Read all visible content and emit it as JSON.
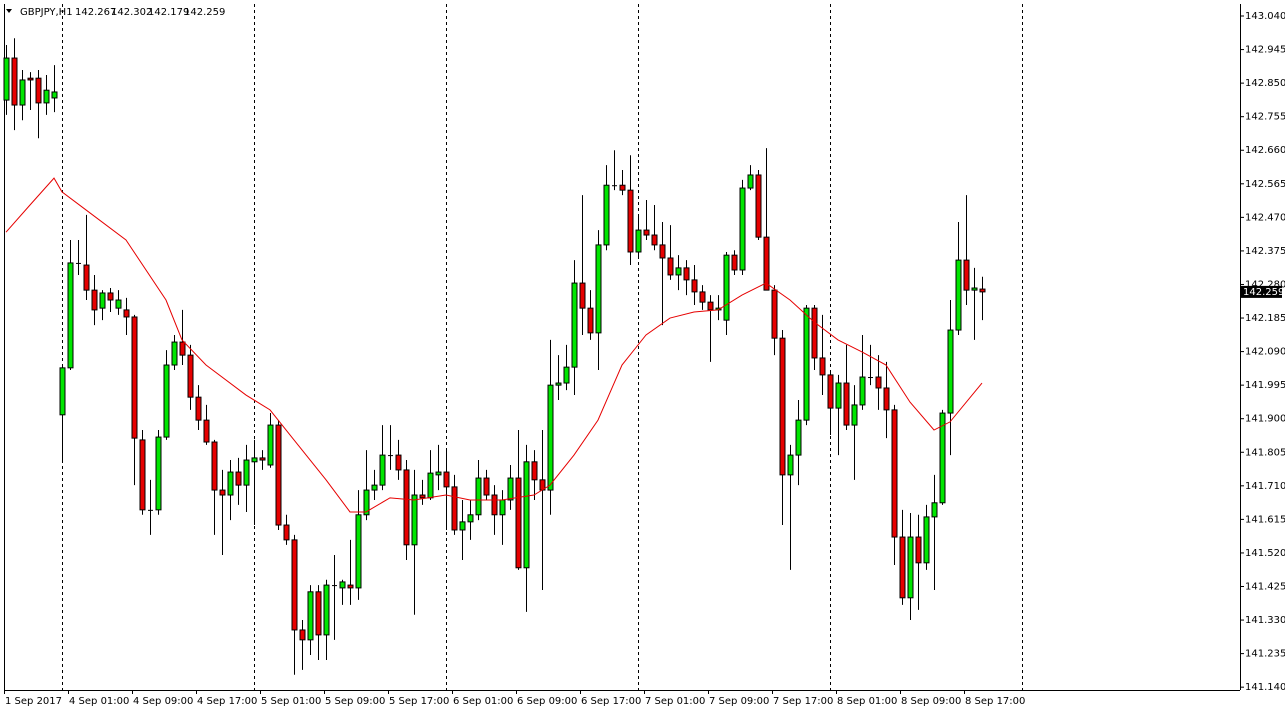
{
  "chart_data": {
    "type": "candlestick",
    "symbol": "GBPJPY,H1",
    "up_color": "#00e600",
    "down_color": "#e60000",
    "outline_color": "#000000",
    "ma_color": "#e60000",
    "categories": [
      "1 Sep 2017",
      null,
      null,
      null,
      null,
      null,
      null,
      null,
      "4 Sep 01:00",
      null,
      null,
      null,
      null,
      null,
      null,
      null,
      "4 Sep 09:00",
      null,
      null,
      null,
      null,
      null,
      null,
      null,
      "4 Sep 17:00",
      null,
      null,
      null,
      null,
      null,
      null,
      null,
      "5 Sep 01:00",
      null,
      null,
      null,
      null,
      null,
      null,
      null,
      "5 Sep 09:00",
      null,
      null,
      null,
      null,
      null,
      null,
      null,
      "5 Sep 17:00",
      null,
      null,
      null,
      null,
      null,
      null,
      null,
      "6 Sep 01:00",
      null,
      null,
      null,
      null,
      null,
      null,
      null,
      "6 Sep 09:00",
      null,
      null,
      null,
      null,
      null,
      null,
      null,
      "6 Sep 17:00",
      null,
      null,
      null,
      null,
      null,
      null,
      null,
      "7 Sep 01:00",
      null,
      null,
      null,
      null,
      null,
      null,
      null,
      "7 Sep 09:00",
      null,
      null,
      null,
      null,
      null,
      null,
      null,
      "7 Sep 17:00",
      null,
      null,
      null,
      null,
      null,
      null,
      null,
      "8 Sep 01:00",
      null,
      null,
      null,
      null,
      null,
      null,
      null,
      "8 Sep 09:00",
      null,
      null,
      null,
      null,
      null,
      null,
      null,
      "8 Sep 17:00",
      null,
      null
    ],
    "open": [
      142.802,
      142.921,
      142.788,
      142.864,
      142.864,
      142.794,
      142.808,
      141.911,
      142.044,
      142.341,
      142.335,
      142.264,
      142.213,
      142.256,
      142.213,
      142.208,
      142.188,
      141.84,
      141.642,
      141.642,
      141.848,
      142.052,
      142.117,
      142.08,
      141.961,
      141.896,
      141.834,
      141.698,
      141.684,
      141.749,
      141.712,
      141.778,
      141.789,
      141.769,
      141.882,
      141.599,
      141.557,
      141.302,
      141.274,
      141.41,
      141.288,
      141.429,
      141.421,
      141.429,
      141.421,
      141.628,
      141.698,
      141.712,
      141.797,
      141.797,
      141.755,
      141.543,
      141.684,
      141.676,
      141.741,
      141.749,
      141.707,
      141.585,
      141.608,
      141.628,
      141.732,
      141.684,
      141.628,
      141.67,
      141.732,
      141.478,
      141.778,
      141.727,
      141.698,
      141.995,
      142.001,
      142.046,
      142.284,
      142.213,
      142.143,
      142.392,
      142.561,
      142.561,
      142.547,
      142.372,
      142.434,
      142.42,
      142.392,
      142.355,
      142.307,
      142.327,
      142.293,
      142.259,
      142.23,
      142.208,
      142.179,
      142.363,
      142.321,
      142.553,
      142.59,
      142.414,
      142.264,
      142.128,
      141.741,
      141.797,
      141.896,
      142.213,
      142.072,
      142.024,
      141.93,
      142.001,
      141.882,
      141.939,
      142.018,
      142.018,
      141.987,
      141.925,
      141.565,
      141.393,
      141.565,
      141.492,
      141.622,
      141.662,
      141.916,
      142.151,
      142.349,
      142.264,
      142.267
    ],
    "high": [
      142.958,
      142.977,
      142.887,
      142.881,
      142.887,
      142.873,
      142.901,
      142.052,
      142.406,
      142.406,
      142.477,
      142.307,
      142.264,
      142.27,
      142.264,
      142.242,
      142.194,
      141.868,
      141.727,
      141.868,
      142.094,
      142.137,
      142.208,
      142.109,
      141.995,
      141.939,
      141.84,
      141.755,
      141.783,
      141.789,
      141.826,
      141.84,
      141.811,
      141.916,
      141.896,
      141.628,
      141.571,
      141.33,
      141.429,
      141.429,
      141.444,
      141.514,
      141.444,
      141.557,
      141.698,
      141.811,
      141.755,
      141.882,
      141.882,
      141.84,
      141.783,
      141.755,
      141.727,
      141.811,
      141.826,
      141.811,
      141.741,
      141.67,
      141.67,
      141.783,
      141.755,
      141.712,
      141.698,
      141.769,
      141.868,
      141.826,
      141.811,
      141.868,
      142.123,
      142.08,
      142.109,
      142.349,
      142.533,
      142.264,
      142.434,
      142.618,
      142.66,
      142.604,
      142.646,
      142.477,
      142.519,
      142.505,
      142.457,
      142.448,
      142.363,
      142.349,
      142.335,
      142.278,
      142.25,
      142.25,
      142.372,
      142.377,
      142.576,
      142.618,
      142.604,
      142.666,
      142.278,
      142.151,
      141.826,
      141.953,
      142.222,
      142.222,
      142.194,
      142.038,
      142.024,
      142.109,
      141.995,
      142.137,
      142.109,
      142.08,
      142.061,
      141.939,
      141.642,
      141.633,
      141.628,
      141.656,
      141.741,
      141.925,
      142.236,
      142.457,
      142.533,
      142.327,
      142.302
    ],
    "low": [
      142.76,
      142.717,
      142.745,
      142.774,
      142.694,
      142.76,
      142.768,
      141.783,
      142.038,
      142.307,
      142.236,
      142.165,
      142.179,
      142.202,
      142.194,
      142.137,
      141.712,
      141.628,
      141.571,
      141.628,
      141.84,
      142.038,
      142.052,
      141.925,
      141.868,
      141.826,
      141.571,
      141.514,
      141.613,
      141.656,
      141.636,
      141.599,
      141.755,
      141.761,
      141.585,
      141.543,
      141.175,
      141.189,
      141.231,
      141.217,
      141.217,
      141.274,
      141.373,
      141.373,
      141.387,
      141.613,
      141.67,
      141.698,
      141.755,
      141.727,
      141.5,
      141.345,
      141.656,
      141.67,
      141.698,
      141.585,
      141.571,
      141.5,
      141.557,
      141.613,
      141.67,
      141.571,
      141.543,
      141.642,
      141.472,
      141.353,
      141.67,
      141.415,
      141.628,
      141.953,
      141.981,
      141.967,
      142.137,
      142.123,
      142.038,
      142.377,
      142.547,
      142.533,
      142.335,
      142.355,
      142.406,
      142.377,
      142.165,
      142.293,
      142.264,
      142.25,
      142.222,
      142.208,
      142.061,
      142.179,
      142.137,
      142.307,
      142.307,
      142.547,
      142.406,
      142.264,
      142.08,
      141.599,
      141.472,
      141.712,
      141.882,
      142.038,
      141.967,
      141.854,
      141.797,
      141.868,
      141.727,
      141.925,
      141.995,
      141.925,
      141.845,
      141.486,
      141.373,
      141.33,
      141.359,
      141.472,
      141.415,
      141.656,
      141.797,
      142.137,
      142.222,
      142.123,
      142.179
    ],
    "close": [
      142.921,
      142.788,
      142.859,
      142.859,
      142.794,
      142.83,
      142.825,
      142.044,
      142.341,
      142.341,
      142.264,
      142.208,
      142.256,
      142.236,
      142.236,
      142.188,
      141.845,
      141.642,
      141.642,
      141.848,
      142.052,
      142.117,
      142.08,
      141.961,
      141.896,
      141.834,
      141.698,
      141.684,
      141.749,
      141.712,
      141.783,
      141.789,
      141.783,
      141.882,
      141.599,
      141.557,
      141.302,
      141.274,
      141.41,
      141.288,
      141.429,
      141.429,
      141.438,
      141.421,
      141.628,
      141.698,
      141.712,
      141.797,
      141.797,
      141.755,
      141.543,
      141.684,
      141.676,
      141.746,
      141.749,
      141.707,
      141.585,
      141.608,
      141.628,
      141.732,
      141.684,
      141.628,
      141.67,
      141.732,
      141.478,
      141.778,
      141.727,
      141.698,
      141.995,
      142.001,
      142.046,
      142.284,
      142.213,
      142.143,
      142.392,
      142.561,
      142.561,
      142.547,
      142.372,
      142.434,
      142.42,
      142.392,
      142.355,
      142.307,
      142.327,
      142.293,
      142.259,
      142.23,
      142.208,
      142.213,
      142.363,
      142.321,
      142.553,
      142.59,
      142.414,
      142.264,
      142.128,
      141.741,
      141.797,
      141.896,
      142.213,
      142.072,
      142.024,
      141.93,
      142.001,
      141.882,
      141.939,
      142.018,
      142.018,
      141.987,
      141.925,
      141.565,
      141.393,
      141.565,
      141.492,
      141.622,
      141.662,
      141.916,
      142.151,
      142.349,
      142.264,
      142.27,
      142.259
    ],
    "ma": {
      "x": [
        0,
        3,
        6,
        7,
        10,
        15,
        20,
        22,
        25,
        30,
        33,
        36,
        40,
        43,
        45,
        48,
        51,
        55,
        58,
        62,
        66,
        68,
        71,
        74,
        77,
        80,
        83,
        86,
        89,
        92,
        95,
        98,
        101,
        104,
        107,
        110,
        113,
        116,
        118,
        122
      ],
      "values": [
        142.428,
        142.505,
        142.581,
        142.542,
        142.491,
        142.406,
        142.236,
        142.123,
        142.052,
        141.967,
        141.925,
        141.84,
        141.727,
        141.636,
        141.636,
        141.676,
        141.67,
        141.684,
        141.67,
        141.67,
        141.684,
        141.712,
        141.797,
        141.896,
        142.052,
        142.137,
        142.185,
        142.202,
        142.208,
        142.25,
        142.284,
        142.236,
        142.174,
        142.123,
        142.089,
        142.052,
        141.947,
        141.868,
        141.891,
        142.001
      ]
    },
    "ylim": [
      141.132,
      143.074
    ],
    "yticks": [
      {
        "value": 143.04,
        "label": "143.040"
      },
      142.945,
      {
        "value": 142.85,
        "label": "142.850"
      },
      142.755,
      {
        "value": 142.66,
        "label": "142.660"
      },
      142.565,
      {
        "value": 142.47,
        "label": "142.470"
      },
      142.375,
      {
        "value": 142.28,
        "label": "142.280"
      },
      142.185,
      {
        "value": 142.09,
        "label": "142.090"
      },
      141.995,
      {
        "value": 141.9,
        "label": "141.900"
      },
      141.805,
      {
        "value": 141.71,
        "label": "141.710"
      },
      141.615,
      {
        "value": 141.52,
        "label": "141.520"
      },
      141.425,
      {
        "value": 141.33,
        "label": "141.330"
      },
      141.235,
      {
        "value": 141.14,
        "label": "141.140"
      }
    ]
  }
}
